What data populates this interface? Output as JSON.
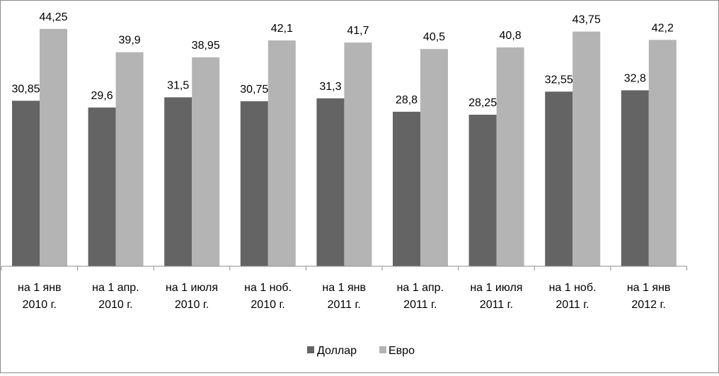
{
  "chart_data": {
    "type": "bar",
    "categories": [
      [
        "на 1  янв",
        "2010 г."
      ],
      [
        "на 1 апр.",
        "2010 г."
      ],
      [
        "на 1 июля",
        "2010 г."
      ],
      [
        "на 1 ноб.",
        "2010 г."
      ],
      [
        "на 1  янв",
        "2011 г."
      ],
      [
        "на 1 апр.",
        "2011 г."
      ],
      [
        "на 1 июля",
        "2011 г."
      ],
      [
        "на 1 ноб.",
        "2011 г."
      ],
      [
        "на 1  янв",
        "2012 г."
      ]
    ],
    "series": [
      {
        "name": "Доллар",
        "color": "#646464",
        "values": [
          30.85,
          29.6,
          31.5,
          30.75,
          31.3,
          28.8,
          28.25,
          32.55,
          32.8
        ],
        "labels": [
          "30,85",
          "29,6",
          "31,5",
          "30,75",
          "31,3",
          "28,8",
          "28,25",
          "32,55",
          "32,8"
        ]
      },
      {
        "name": "Евро",
        "color": "#b4b4b4",
        "values": [
          44.25,
          39.9,
          38.95,
          42.1,
          41.7,
          40.5,
          40.8,
          43.75,
          42.2
        ],
        "labels": [
          "44,25",
          "39,9",
          "38,95",
          "42,1",
          "41,7",
          "40,5",
          "40,8",
          "43,75",
          "42,2"
        ]
      }
    ],
    "ylim": [
      0,
      49.5
    ],
    "grid": false,
    "legend": "bottom"
  }
}
